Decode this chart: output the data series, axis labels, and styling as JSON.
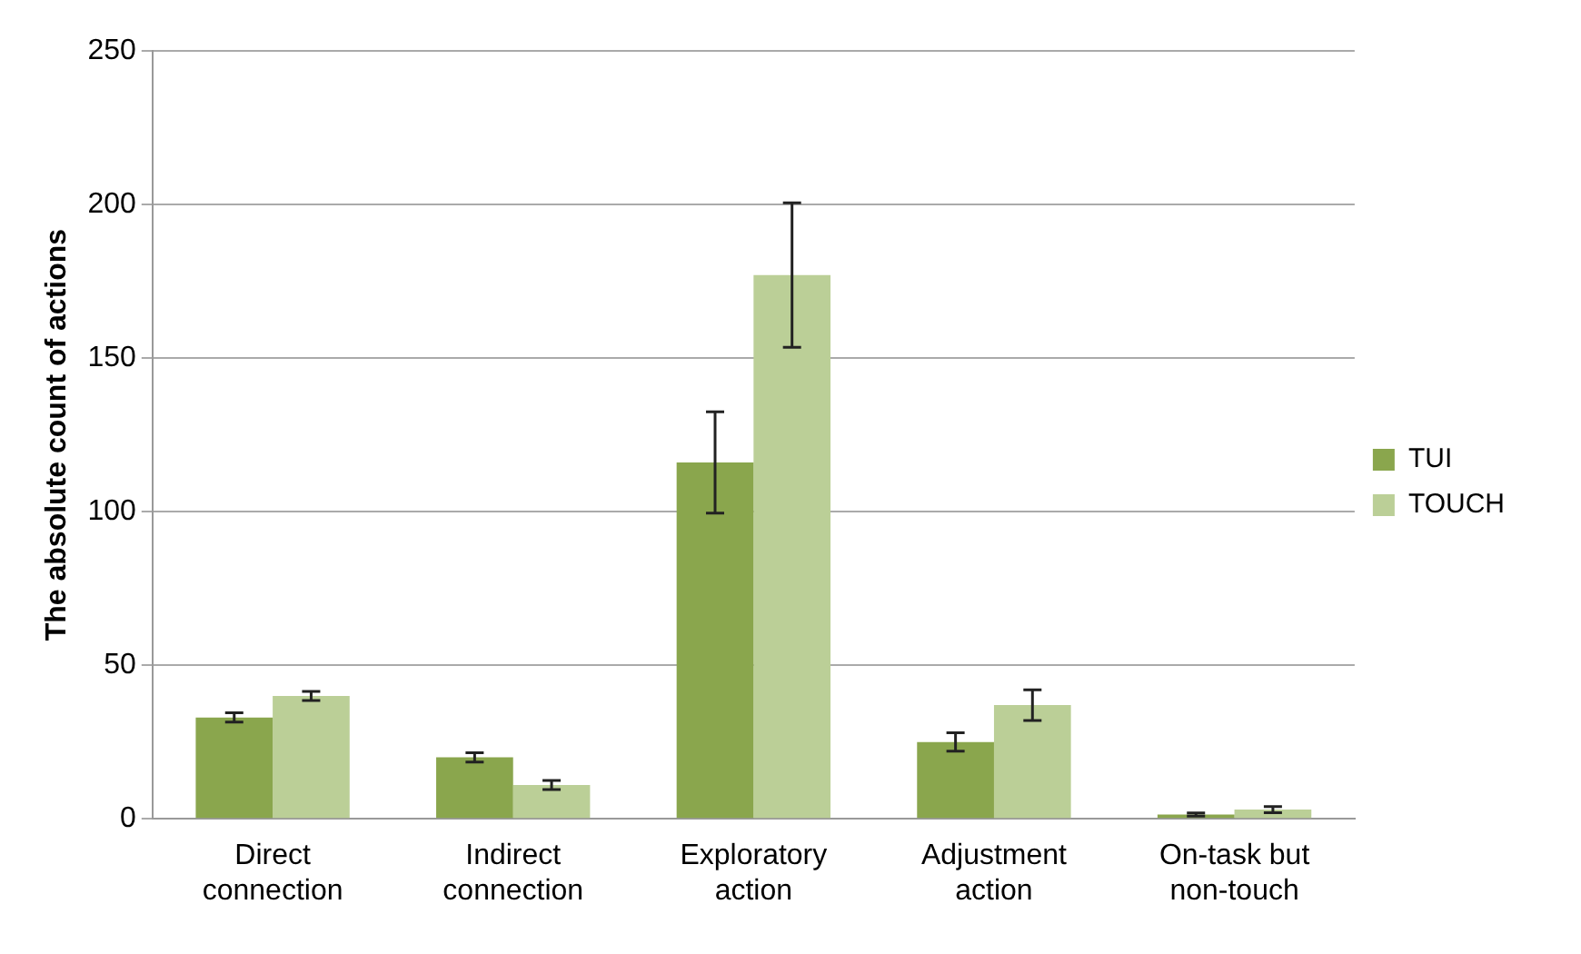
{
  "chart_data": {
    "type": "bar",
    "ylabel": "The absolute count of actions",
    "categories": [
      "Direct connection",
      "Indirect connection",
      "Exploratory action",
      "Adjustment action",
      "On-task but non-touch"
    ],
    "series": [
      {
        "name": "TUI",
        "color": "#8aa64d",
        "values": [
          33,
          20,
          116,
          25,
          1.4
        ],
        "errors": [
          1.5,
          1.5,
          16.5,
          3,
          0.5
        ]
      },
      {
        "name": "TOUCH",
        "color": "#bbcf97",
        "values": [
          40,
          11,
          177,
          37,
          3
        ],
        "errors": [
          1.5,
          1.5,
          23.5,
          5,
          1
        ]
      }
    ],
    "ylim": [
      0,
      250
    ],
    "yticks": [
      0,
      50,
      100,
      150,
      200,
      250
    ],
    "grid": "y",
    "legend": "right"
  }
}
